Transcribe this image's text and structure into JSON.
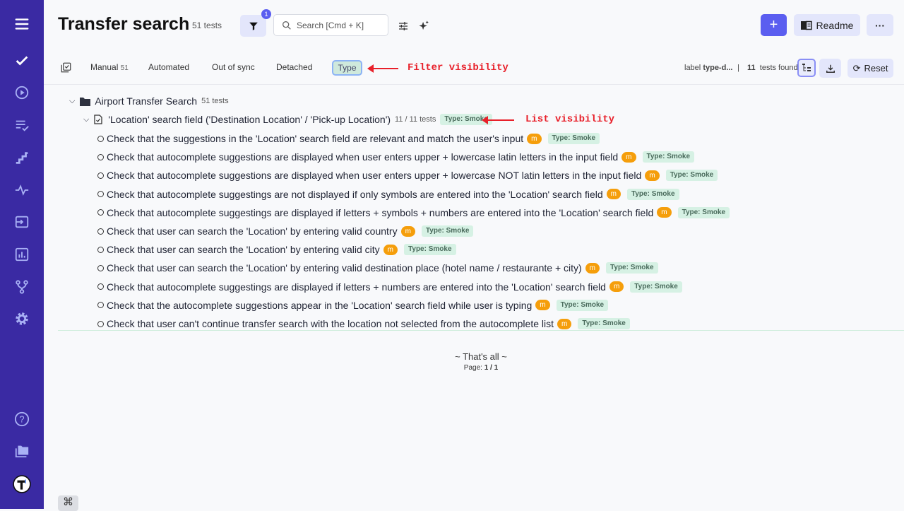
{
  "header": {
    "title": "Transfer search",
    "count": "51 tests",
    "filter_badge": "1",
    "search_placeholder": "Search [Cmd + K]",
    "add_label": "+",
    "readme_label": "Readme",
    "more_label": "···"
  },
  "tabs": [
    {
      "label": "Manual",
      "count": "51"
    },
    {
      "label": "Automated"
    },
    {
      "label": "Out of sync"
    },
    {
      "label": "Detached"
    },
    {
      "label": "Type"
    }
  ],
  "annotations": {
    "filter": "Filter visibility",
    "list": "List visibility"
  },
  "toolbar": {
    "label_prefix": "label",
    "label_value": "type-d...",
    "separator": "|",
    "found_count": "11",
    "found_label": "tests found",
    "reset_label": "Reset"
  },
  "suite": {
    "name": "Airport Transfer Search",
    "count": "51 tests"
  },
  "group": {
    "name": "'Location' search field ('Destination Location' / 'Pick-up Location')",
    "count": "11 / 11 tests",
    "tag": "Type: Smoke"
  },
  "tests": [
    {
      "title": "Check that the suggestions in the 'Location' search field are relevant and match the user's input",
      "mode": "m",
      "tag": "Type: Smoke"
    },
    {
      "title": "Check that autocomplete suggestions are displayed when user enters upper + lowercase latin letters in the input field",
      "mode": "m",
      "tag": "Type: Smoke"
    },
    {
      "title": "Check that autocomplete suggestions are displayed when user enters upper + lowercase NOT latin letters in the input field",
      "mode": "m",
      "tag": "Type: Smoke"
    },
    {
      "title": "Check that autocomplete suggestings are not displayed if only symbols are entered into the 'Location' search field",
      "mode": "m",
      "tag": "Type: Smoke"
    },
    {
      "title": "Check that autocomplete suggestings are displayed if letters + symbols + numbers are entered into the 'Location' search field",
      "mode": "m",
      "tag": "Type: Smoke"
    },
    {
      "title": "Check that user can search the 'Location' by entering valid country",
      "mode": "m",
      "tag": "Type: Smoke"
    },
    {
      "title": "Check that user can search the 'Location' by entering valid city",
      "mode": "m",
      "tag": "Type: Smoke"
    },
    {
      "title": "Check that user can search the 'Location' by entering valid destination place (hotel name / restaurante + city)",
      "mode": "m",
      "tag": "Type: Smoke"
    },
    {
      "title": "Check that autocomplete suggestings are displayed if letters + numbers are entered into the 'Location' search field",
      "mode": "m",
      "tag": "Type: Smoke"
    },
    {
      "title": "Check that the autocomplete suggestions appear in the 'Location' search field while user is typing",
      "mode": "m",
      "tag": "Type: Smoke"
    },
    {
      "title": "Check that user can't continue transfer search with the location not selected from the autocomplete list",
      "mode": "m",
      "tag": "Type: Smoke"
    }
  ],
  "footer": {
    "end_text": "~ That's all ~",
    "page_label": "Page:",
    "page_value": "1 / 1",
    "shortcut": "⌘"
  },
  "colors": {
    "sidebar": "#3a2aa3",
    "accent": "#5b5ef0",
    "manual_badge": "#f59e0b",
    "tag_bg": "#d6f1e4",
    "annotation": "#e8202a"
  }
}
